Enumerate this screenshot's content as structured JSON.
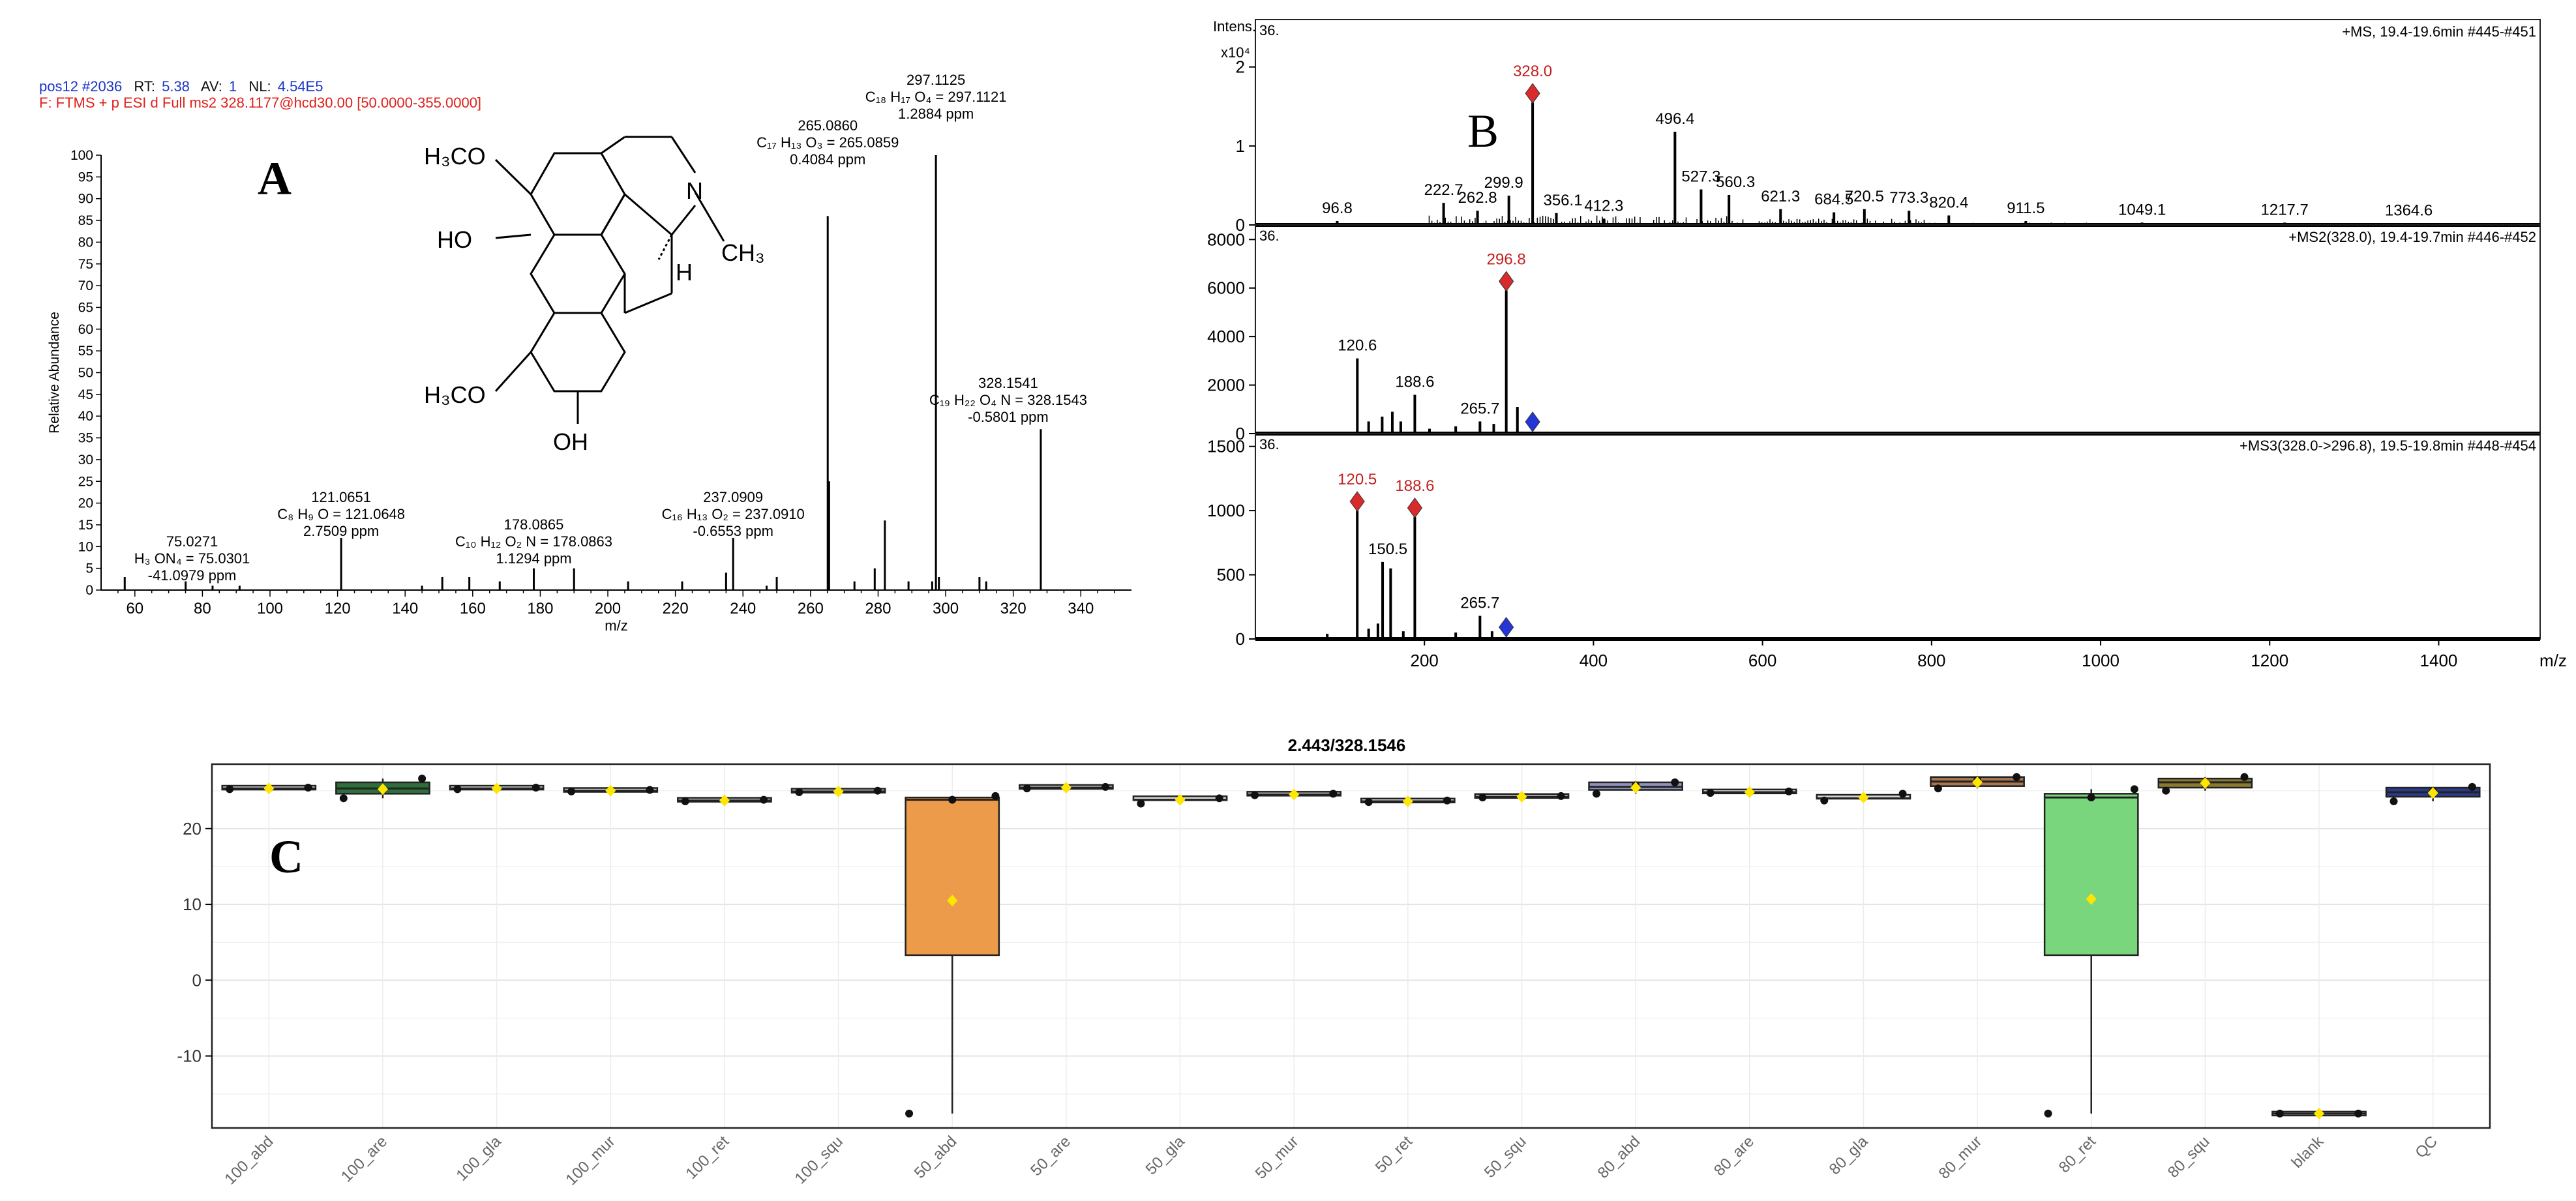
{
  "panel_labels": {
    "a": "A",
    "b": "B",
    "c": "C"
  },
  "colors": {
    "header_blue": "#1a35c8",
    "header_red": "#e0201b",
    "marker_red": "#d92b2b",
    "marker_blue": "#2436d6",
    "mean_yellow": "#ffe600"
  },
  "header_a": {
    "line1": [
      "pos12 #2036",
      "RT:",
      "5.38",
      "AV:",
      "1",
      "NL:",
      "4.54E5"
    ],
    "line2": "F: FTMS + p ESI d Full ms2 328.1177@hcd30.00 [50.0000-355.0000]"
  },
  "structure": {
    "h3co_top": "H₃CO",
    "ho": "HO",
    "n": "N",
    "ch3": "CH₃",
    "h": "H",
    "h3co_bottom": "H₃CO",
    "oh": "OH"
  },
  "chart_data": [
    {
      "type": "bar",
      "title": "",
      "xlabel": "m/z",
      "ylabel": "Relative Abundance",
      "xlim": [
        50,
        355
      ],
      "ylim": [
        0,
        100
      ],
      "x_ticks": [
        60,
        80,
        100,
        120,
        140,
        160,
        180,
        200,
        220,
        240,
        260,
        280,
        300,
        320,
        340
      ],
      "y_ticks": [
        0,
        5,
        10,
        15,
        20,
        25,
        30,
        35,
        40,
        45,
        50,
        55,
        60,
        65,
        70,
        75,
        80,
        85,
        90,
        95,
        100
      ],
      "peaks": [
        {
          "x": 57.0,
          "y": 3
        },
        {
          "x": 75.0271,
          "y": 2
        },
        {
          "x": 83.0,
          "y": 1
        },
        {
          "x": 91.0,
          "y": 1
        },
        {
          "x": 121.0651,
          "y": 12
        },
        {
          "x": 145.0,
          "y": 1
        },
        {
          "x": 151.0,
          "y": 3
        },
        {
          "x": 159.0,
          "y": 3
        },
        {
          "x": 168.0,
          "y": 2
        },
        {
          "x": 178.0865,
          "y": 5
        },
        {
          "x": 190.0,
          "y": 5
        },
        {
          "x": 206.0,
          "y": 2
        },
        {
          "x": 222.0,
          "y": 2
        },
        {
          "x": 235.0,
          "y": 4
        },
        {
          "x": 237.0909,
          "y": 12
        },
        {
          "x": 247.0,
          "y": 1
        },
        {
          "x": 250.0,
          "y": 3
        },
        {
          "x": 265.086,
          "y": 86
        },
        {
          "x": 265.5,
          "y": 25
        },
        {
          "x": 273.0,
          "y": 2
        },
        {
          "x": 279.0,
          "y": 5
        },
        {
          "x": 282.0,
          "y": 16
        },
        {
          "x": 289.0,
          "y": 2
        },
        {
          "x": 296.0,
          "y": 2
        },
        {
          "x": 297.1125,
          "y": 100
        },
        {
          "x": 298.0,
          "y": 3
        },
        {
          "x": 310.0,
          "y": 3
        },
        {
          "x": 312.0,
          "y": 2
        },
        {
          "x": 328.1541,
          "y": 37
        }
      ],
      "annotations": [
        {
          "mz": "75.0271",
          "formula": "H₃ ON₄ = 75.0301",
          "ppm": "-41.0979 ppm"
        },
        {
          "mz": "121.0651",
          "formula": "C₈ H₉ O = 121.0648",
          "ppm": "2.7509 ppm"
        },
        {
          "mz": "178.0865",
          "formula": "C₁₀ H₁₂ O₂ N = 178.0863",
          "ppm": "1.1294 ppm"
        },
        {
          "mz": "237.0909",
          "formula": "C₁₆ H₁₃ O₂ = 237.0910",
          "ppm": "-0.6553 ppm"
        },
        {
          "mz": "265.0860",
          "formula": "C₁₇ H₁₃ O₃ = 265.0859",
          "ppm": "0.4084 ppm"
        },
        {
          "mz": "297.1125",
          "formula": "C₁₈ H₁₇ O₄ = 297.1121",
          "ppm": "1.2884 ppm"
        },
        {
          "mz": "328.1541",
          "formula": "C₁₉ H₂₂ O₄ N = 328.1543",
          "ppm": "-0.5801 ppm"
        }
      ]
    },
    {
      "type": "bar",
      "title": "+MS, 19.4-19.6min #445-#451",
      "ylabel": "Intens.",
      "y_unit": "x10⁴",
      "corner": "36.",
      "xlim": [
        0,
        1520
      ],
      "ylim": [
        0,
        2.6
      ],
      "y_ticks": [
        0,
        1,
        2
      ],
      "peaks": [
        {
          "x": 96.8,
          "y": 0.05
        },
        {
          "x": 222.7,
          "y": 0.28
        },
        {
          "x": 262.8,
          "y": 0.18
        },
        {
          "x": 299.9,
          "y": 0.37
        },
        {
          "x": 328.0,
          "y": 1.55
        },
        {
          "x": 356.1,
          "y": 0.15
        },
        {
          "x": 412.3,
          "y": 0.08
        },
        {
          "x": 496.4,
          "y": 1.18
        },
        {
          "x": 527.3,
          "y": 0.45
        },
        {
          "x": 560.3,
          "y": 0.38
        },
        {
          "x": 621.3,
          "y": 0.2
        },
        {
          "x": 684.5,
          "y": 0.16
        },
        {
          "x": 720.5,
          "y": 0.2
        },
        {
          "x": 773.3,
          "y": 0.18
        },
        {
          "x": 820.4,
          "y": 0.12
        },
        {
          "x": 911.5,
          "y": 0.05
        },
        {
          "x": 1049.1,
          "y": 0.03
        },
        {
          "x": 1217.7,
          "y": 0.03
        },
        {
          "x": 1364.6,
          "y": 0.02
        }
      ],
      "labels": [
        "96.8",
        "222.7",
        "262.8",
        "299.9",
        "328.0",
        "356.1",
        "412.3",
        "496.4",
        "527.3",
        "560.3",
        "621.3",
        "684.5",
        "720.5",
        "773.3",
        "820.4",
        "911.5",
        "1049.1",
        "1217.7",
        "1364.6"
      ],
      "red_marker": {
        "x": 328.0,
        "label": "328.0"
      }
    },
    {
      "type": "bar",
      "title": "+MS2(328.0), 19.4-19.7min #446-#452",
      "corner": "36.",
      "xlim": [
        0,
        1520
      ],
      "ylim": [
        0,
        8600
      ],
      "y_ticks": [
        0,
        2000,
        4000,
        6000,
        8000
      ],
      "peaks": [
        {
          "x": 120.6,
          "y": 3100
        },
        {
          "x": 134.0,
          "y": 500
        },
        {
          "x": 150.0,
          "y": 700
        },
        {
          "x": 162.0,
          "y": 900
        },
        {
          "x": 172.0,
          "y": 500
        },
        {
          "x": 188.6,
          "y": 1600
        },
        {
          "x": 206.0,
          "y": 200
        },
        {
          "x": 237.0,
          "y": 300
        },
        {
          "x": 265.7,
          "y": 500
        },
        {
          "x": 282.0,
          "y": 400
        },
        {
          "x": 296.8,
          "y": 5900
        },
        {
          "x": 310.0,
          "y": 1100
        }
      ],
      "labels": [
        "120.6",
        "188.6",
        "265.7",
        "296.8"
      ],
      "red_marker": {
        "x": 296.8,
        "label": "296.8"
      },
      "blue_marker": {
        "x": 328.0
      }
    },
    {
      "type": "bar",
      "title": "+MS3(328.0->296.8), 19.5-19.8min #448-#454",
      "corner": "36.",
      "xlabel": "m/z",
      "xlim": [
        0,
        1520
      ],
      "ylim": [
        0,
        1600
      ],
      "x_ticks": [
        200,
        400,
        600,
        800,
        1000,
        1200,
        1400
      ],
      "y_ticks": [
        0,
        500,
        1000,
        1500
      ],
      "peaks": [
        {
          "x": 85.0,
          "y": 40
        },
        {
          "x": 120.5,
          "y": 1000
        },
        {
          "x": 134.0,
          "y": 80
        },
        {
          "x": 145.0,
          "y": 120
        },
        {
          "x": 150.5,
          "y": 600
        },
        {
          "x": 160.0,
          "y": 550
        },
        {
          "x": 175.0,
          "y": 60
        },
        {
          "x": 188.6,
          "y": 950
        },
        {
          "x": 237.0,
          "y": 50
        },
        {
          "x": 265.7,
          "y": 180
        },
        {
          "x": 280.0,
          "y": 60
        }
      ],
      "labels": [
        "120.5",
        "188.6",
        "150.5",
        "265.7"
      ],
      "red_markers": [
        {
          "x": 120.5,
          "label": "120.5"
        },
        {
          "x": 188.6,
          "label": "188.6"
        }
      ],
      "blue_marker": {
        "x": 296.8
      }
    },
    {
      "type": "box",
      "title": "2.443/328.1546",
      "ylim": [
        -19.5,
        28.5
      ],
      "y_ticks": [
        -10,
        0,
        10,
        20
      ],
      "categories": [
        "100_abd",
        "100_are",
        "100_gla",
        "100_mur",
        "100_ret",
        "100_squ",
        "50_abd",
        "50_are",
        "50_gla",
        "50_mur",
        "50_ret",
        "50_squ",
        "80_abd",
        "80_are",
        "80_gla",
        "80_mur",
        "80_ret",
        "80_squ",
        "blank",
        "QC"
      ],
      "boxes": [
        {
          "q1": 25.2,
          "median": 25.3,
          "q3": 25.4,
          "whisker_low": 25.2,
          "whisker_high": 25.4,
          "mean": 25.3,
          "color": "#d8d8d8",
          "points": [
            25.2,
            25.3,
            25.4
          ]
        },
        {
          "q1": 24.6,
          "median": 25.3,
          "q3": 26.1,
          "whisker_low": 24.0,
          "whisker_high": 26.6,
          "mean": 25.2,
          "color": "#2e6e3b",
          "points": [
            24.0,
            25.1,
            26.6
          ]
        },
        {
          "q1": 25.2,
          "median": 25.3,
          "q3": 25.4,
          "whisker_low": 25.2,
          "whisker_high": 25.4,
          "mean": 25.3,
          "color": "#d8d8d8",
          "points": [
            25.2,
            25.3,
            25.4
          ]
        },
        {
          "q1": 24.9,
          "median": 25.0,
          "q3": 25.1,
          "whisker_low": 24.9,
          "whisker_high": 25.1,
          "mean": 25.0,
          "color": "#d8d8d8",
          "points": [
            24.9,
            25.0,
            25.1
          ]
        },
        {
          "q1": 23.6,
          "median": 23.7,
          "q3": 23.8,
          "whisker_low": 23.6,
          "whisker_high": 23.8,
          "mean": 23.7,
          "color": "#d8d8d8",
          "points": [
            23.6,
            23.7,
            23.8
          ]
        },
        {
          "q1": 24.8,
          "median": 24.9,
          "q3": 25.0,
          "whisker_low": 24.8,
          "whisker_high": 25.0,
          "mean": 24.9,
          "color": "#d8d8d8",
          "points": [
            24.8,
            24.9,
            25.0
          ]
        },
        {
          "q1": 3.3,
          "median": 23.8,
          "q3": 24.1,
          "whisker_low": -17.6,
          "whisker_high": 24.3,
          "mean": 10.5,
          "color": "#eb9b49",
          "points": [
            -17.6,
            23.8,
            24.3
          ]
        },
        {
          "q1": 25.3,
          "median": 25.4,
          "q3": 25.5,
          "whisker_low": 25.3,
          "whisker_high": 25.5,
          "mean": 25.4,
          "color": "#d8d8d8",
          "points": [
            25.3,
            25.4,
            25.5
          ]
        },
        {
          "q1": 23.5,
          "median": 23.8,
          "q3": 24.0,
          "whisker_low": 23.3,
          "whisker_high": 24.0,
          "mean": 23.8,
          "color": "#d8d8d8",
          "points": [
            23.3,
            23.8,
            24.0
          ]
        },
        {
          "q1": 24.4,
          "median": 24.5,
          "q3": 24.6,
          "whisker_low": 24.4,
          "whisker_high": 24.6,
          "mean": 24.5,
          "color": "#d8d8d8",
          "points": [
            24.4,
            24.5,
            24.6
          ]
        },
        {
          "q1": 23.5,
          "median": 23.6,
          "q3": 23.7,
          "whisker_low": 23.5,
          "whisker_high": 23.7,
          "mean": 23.6,
          "color": "#d8d8d8",
          "points": [
            23.5,
            23.6,
            23.7
          ]
        },
        {
          "q1": 24.1,
          "median": 24.2,
          "q3": 24.3,
          "whisker_low": 24.1,
          "whisker_high": 24.3,
          "mean": 24.2,
          "color": "#d8d8d8",
          "points": [
            24.1,
            24.2,
            24.3
          ]
        },
        {
          "q1": 25.1,
          "median": 25.5,
          "q3": 26.1,
          "whisker_low": 24.6,
          "whisker_high": 26.1,
          "mean": 25.4,
          "color": "#8f93bd",
          "points": [
            24.6,
            25.7,
            26.1
          ]
        },
        {
          "q1": 24.7,
          "median": 24.8,
          "q3": 24.9,
          "whisker_low": 24.7,
          "whisker_high": 24.9,
          "mean": 24.8,
          "color": "#d8d8d8",
          "points": [
            24.7,
            24.8,
            24.9
          ]
        },
        {
          "q1": 23.8,
          "median": 24.0,
          "q3": 24.2,
          "whisker_low": 23.7,
          "whisker_high": 24.6,
          "mean": 24.1,
          "color": "#d8d8d8",
          "points": [
            23.7,
            24.1,
            24.6
          ]
        },
        {
          "q1": 25.6,
          "median": 26.2,
          "q3": 26.8,
          "whisker_low": 25.3,
          "whisker_high": 26.8,
          "mean": 26.1,
          "color": "#a8754e",
          "points": [
            25.3,
            26.4,
            26.8
          ]
        },
        {
          "q1": 3.3,
          "median": 24.1,
          "q3": 24.6,
          "whisker_low": -17.6,
          "whisker_high": 25.2,
          "mean": 10.7,
          "color": "#7ad67d",
          "points": [
            -17.6,
            24.1,
            25.2
          ]
        },
        {
          "q1": 25.4,
          "median": 26.1,
          "q3": 26.6,
          "whisker_low": 25.0,
          "whisker_high": 26.8,
          "mean": 26.0,
          "color": "#8a7a30",
          "points": [
            25.0,
            25.9,
            26.8
          ]
        },
        {
          "q1": -17.6,
          "median": -17.6,
          "q3": -17.6,
          "whisker_low": -17.6,
          "whisker_high": -17.6,
          "mean": -17.6,
          "color": "#d8d8d8",
          "points": [
            -17.6,
            -17.6,
            -17.6
          ]
        },
        {
          "q1": 24.2,
          "median": 24.8,
          "q3": 25.4,
          "whisker_low": 23.6,
          "whisker_high": 25.5,
          "mean": 24.7,
          "color": "#2a3a88",
          "points": [
            23.6,
            24.9,
            25.5
          ]
        }
      ]
    }
  ]
}
